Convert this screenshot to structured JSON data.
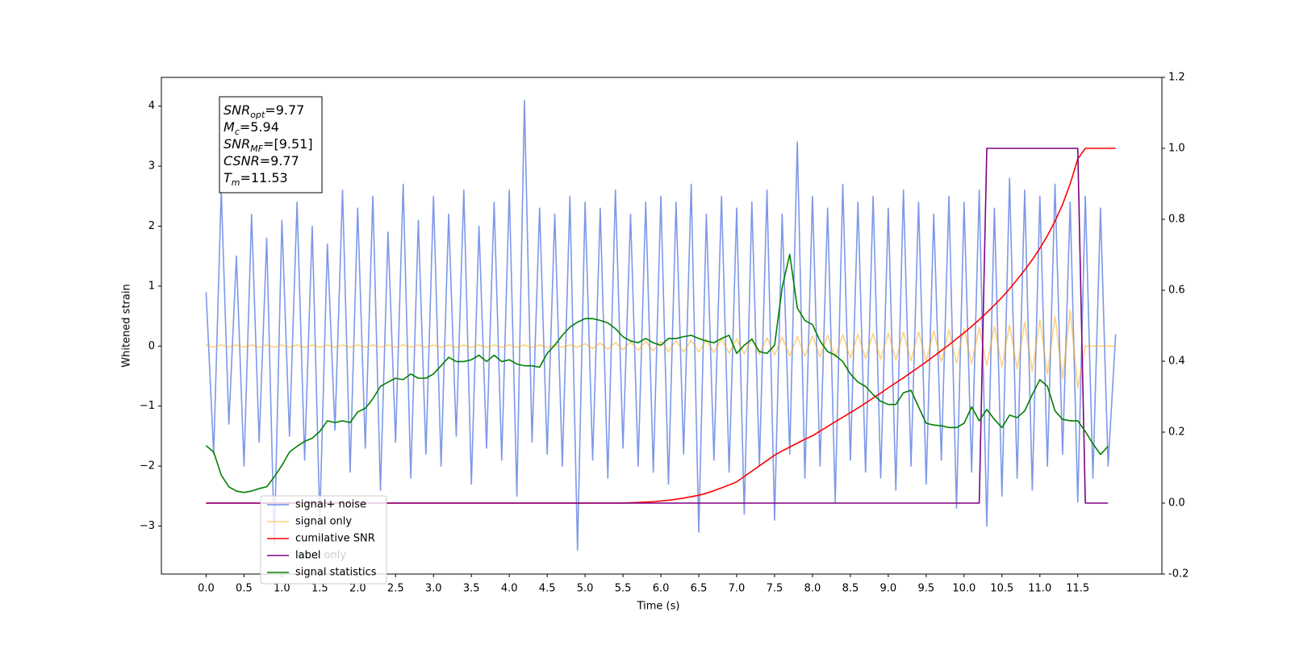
{
  "chart_data": {
    "type": "line",
    "xlabel": "Time (s)",
    "ylabel": "Whitened strain",
    "xlim": [
      -0.59,
      12.61
    ],
    "ylim": [
      -3.8,
      4.48
    ],
    "y2lim": [
      -0.2,
      1.2
    ],
    "xticks": [
      {
        "value": 0,
        "label": "0.0"
      },
      0.5,
      {
        "value": 1,
        "label": "1.0"
      },
      1.5,
      {
        "value": 2,
        "label": "2.0"
      },
      2.5,
      {
        "value": 3,
        "label": "3.0"
      },
      3.5,
      {
        "value": 4,
        "label": "4.0"
      },
      4.5,
      {
        "value": 5,
        "label": "5.0"
      },
      5.5,
      {
        "value": 6,
        "label": "6.0"
      },
      6.5,
      {
        "value": 7,
        "label": "7.0"
      },
      7.5,
      {
        "value": 8,
        "label": "8.0"
      },
      8.5,
      {
        "value": 9,
        "label": "9.0"
      },
      9.5,
      {
        "value": 10,
        "label": "10.0"
      },
      10.5,
      {
        "value": 11,
        "label": "11.0"
      },
      11.5
    ],
    "yticks": [
      {
        "value": -3,
        "label": "−3"
      },
      {
        "value": -2,
        "label": "−2"
      },
      {
        "value": -1,
        "label": "−1"
      },
      0,
      1,
      2,
      3,
      4
    ],
    "y2ticks": [
      -0.2,
      {
        "value": 0,
        "label": "0.0"
      },
      0.2,
      0.4,
      0.6,
      0.8,
      {
        "value": 1,
        "label": "1.0"
      },
      1.2
    ],
    "x": [
      0,
      0.1,
      0.2,
      0.3,
      0.4,
      0.5,
      0.6,
      0.7,
      0.8,
      0.9,
      1,
      1.1,
      1.2,
      1.3,
      1.4,
      1.5,
      1.6,
      1.7,
      1.8,
      1.9,
      2,
      2.1,
      2.2,
      2.3,
      2.4,
      2.5,
      2.6,
      2.7,
      2.8,
      2.9,
      3,
      3.1,
      3.2,
      3.3,
      3.4,
      3.5,
      3.6,
      3.7,
      3.8,
      3.9,
      4,
      4.1,
      4.2,
      4.3,
      4.4,
      4.5,
      4.6,
      4.7,
      4.8,
      4.9,
      5,
      5.1,
      5.2,
      5.3,
      5.4,
      5.5,
      5.6,
      5.7,
      5.8,
      5.9,
      6,
      6.1,
      6.2,
      6.3,
      6.4,
      6.5,
      6.6,
      6.7,
      6.8,
      6.9,
      7,
      7.1,
      7.2,
      7.3,
      7.4,
      7.5,
      7.6,
      7.7,
      7.8,
      7.9,
      8,
      8.1,
      8.2,
      8.3,
      8.4,
      8.5,
      8.6,
      8.7,
      8.8,
      8.9,
      9,
      9.1,
      9.2,
      9.3,
      9.4,
      9.5,
      9.6,
      9.7,
      9.8,
      9.9,
      10,
      10.1,
      10.2,
      10.3,
      10.4,
      10.5,
      10.6,
      10.7,
      10.8,
      10.9,
      11,
      11.1,
      11.2,
      11.3,
      11.4,
      11.5,
      11.6,
      11.7,
      11.8,
      11.9,
      12
    ],
    "series": [
      {
        "name": "signal+ noise",
        "color": "#6f8de6",
        "values": [
          0.9,
          -1.8,
          2.6,
          -1.3,
          1.5,
          -2.0,
          2.2,
          -1.6,
          1.8,
          -3.3,
          2.1,
          -1.5,
          2.4,
          -1.9,
          2.0,
          -2.9,
          1.7,
          -1.4,
          2.6,
          -2.1,
          2.3,
          -1.7,
          2.5,
          -2.4,
          1.9,
          -1.6,
          2.7,
          -2.2,
          2.1,
          -1.8,
          2.5,
          -2.0,
          2.2,
          -1.5,
          2.6,
          -2.3,
          2.0,
          -1.7,
          2.4,
          -1.9,
          2.6,
          -2.5,
          4.1,
          -1.6,
          2.3,
          -1.8,
          2.2,
          -2.0,
          2.5,
          -3.4,
          2.4,
          -1.9,
          2.3,
          -2.2,
          2.6,
          -1.7,
          2.2,
          -2.0,
          2.4,
          -2.1,
          2.5,
          -2.3,
          2.4,
          -1.8,
          2.7,
          -3.1,
          2.2,
          -1.9,
          2.5,
          -2.1,
          2.3,
          -2.8,
          2.4,
          -2.0,
          2.6,
          -2.9,
          2.2,
          -1.8,
          3.4,
          -2.2,
          2.5,
          -2.0,
          2.3,
          -2.6,
          2.7,
          -1.9,
          2.4,
          -2.1,
          2.5,
          -2.2,
          2.3,
          -2.4,
          2.6,
          -2.0,
          2.4,
          -2.3,
          2.2,
          -1.9,
          2.5,
          -2.7,
          2.4,
          -2.1,
          2.6,
          -3.0,
          2.3,
          -2.5,
          2.8,
          -2.2,
          2.6,
          -2.4,
          2.5,
          -2.0,
          2.7,
          -1.8,
          2.4,
          -2.6,
          2.5,
          -2.2,
          2.3,
          -2.0,
          0.2
        ]
      },
      {
        "name": "signal only",
        "color": "#ffa500",
        "values": [
          0.02,
          -0.02,
          0.02,
          -0.02,
          0.02,
          -0.02,
          0.02,
          -0.02,
          0.02,
          -0.02,
          0.02,
          -0.02,
          0.02,
          -0.02,
          0.02,
          -0.02,
          0.02,
          -0.02,
          0.02,
          -0.02,
          0.02,
          -0.02,
          0.02,
          -0.02,
          0.02,
          -0.02,
          0.02,
          -0.02,
          0.02,
          -0.02,
          0.02,
          -0.02,
          0.02,
          -0.02,
          0.02,
          -0.02,
          0.02,
          -0.02,
          0.02,
          -0.02,
          0.02,
          -0.02,
          0.02,
          -0.02,
          0.02,
          -0.02,
          0.02,
          -0.02,
          0.02,
          -0.02,
          0.04,
          -0.04,
          0.05,
          -0.05,
          0.06,
          -0.06,
          0.07,
          -0.07,
          0.08,
          -0.08,
          0.08,
          -0.09,
          0.09,
          -0.1,
          0.1,
          -0.1,
          0.11,
          -0.11,
          0.12,
          -0.12,
          0.12,
          -0.13,
          0.13,
          -0.14,
          0.14,
          -0.15,
          0.15,
          -0.16,
          0.16,
          -0.17,
          0.17,
          -0.18,
          0.18,
          -0.19,
          0.19,
          -0.2,
          0.2,
          -0.21,
          0.21,
          -0.22,
          0.22,
          -0.23,
          0.23,
          -0.24,
          0.24,
          -0.25,
          0.25,
          -0.26,
          0.27,
          -0.28,
          0.29,
          -0.3,
          0.31,
          -0.32,
          0.33,
          -0.35,
          0.36,
          -0.38,
          0.4,
          -0.42,
          0.44,
          -0.47,
          0.5,
          -0.55,
          0.6,
          -0.7,
          0,
          0,
          0,
          0,
          0
        ]
      },
      {
        "name": "cumilative SNR",
        "color": "#ff0000",
        "axis": "y2",
        "values": [
          0,
          0,
          0,
          0,
          0,
          0,
          0,
          0,
          0,
          0,
          0,
          0,
          0,
          0,
          0,
          0,
          0,
          0,
          0,
          0,
          0,
          0,
          0,
          0,
          0,
          0,
          0,
          0,
          0,
          0,
          0,
          0,
          0,
          0,
          0,
          0,
          0,
          0,
          0,
          0,
          0,
          0,
          0,
          0,
          0,
          0,
          0,
          0,
          0,
          0,
          0,
          0,
          0,
          0,
          0,
          0,
          0.001,
          0.002,
          0.003,
          0.004,
          0.006,
          0.008,
          0.011,
          0.014,
          0.018,
          0.022,
          0.028,
          0.035,
          0.043,
          0.051,
          0.06,
          0.075,
          0.09,
          0.105,
          0.12,
          0.135,
          0.147,
          0.158,
          0.169,
          0.18,
          0.19,
          0.203,
          0.216,
          0.229,
          0.242,
          0.255,
          0.268,
          0.282,
          0.296,
          0.31,
          0.325,
          0.339,
          0.353,
          0.368,
          0.383,
          0.398,
          0.414,
          0.43,
          0.446,
          0.463,
          0.48,
          0.498,
          0.517,
          0.537,
          0.558,
          0.58,
          0.604,
          0.63,
          0.657,
          0.686,
          0.718,
          0.754,
          0.795,
          0.842,
          0.9,
          0.97,
          1,
          1,
          1,
          1,
          1
        ]
      },
      {
        "name": "label",
        "color": "#800080",
        "axis": "y2",
        "values": [
          0,
          0,
          0,
          0,
          0,
          0,
          0,
          0,
          0,
          0,
          0,
          0,
          0,
          0,
          0,
          0,
          0,
          0,
          0,
          0,
          0,
          0,
          0,
          0,
          0,
          0,
          0,
          0,
          0,
          0,
          0,
          0,
          0,
          0,
          0,
          0,
          0,
          0,
          0,
          0,
          0,
          0,
          0,
          0,
          0,
          0,
          0,
          0,
          0,
          0,
          0,
          0,
          0,
          0,
          0,
          0,
          0,
          0,
          0,
          0,
          0,
          0,
          0,
          0,
          0,
          0,
          0,
          0,
          0,
          0,
          0,
          0,
          0,
          0,
          0,
          0,
          0,
          0,
          0,
          0,
          0,
          0,
          0,
          0,
          0,
          0,
          0,
          0,
          0,
          0,
          0,
          0,
          0,
          0,
          0,
          0,
          0,
          0,
          0,
          0,
          0,
          0,
          0,
          1,
          1,
          1,
          1,
          1,
          1,
          1,
          1,
          1,
          1,
          1,
          1,
          1,
          0,
          0,
          0,
          0,
          null
        ]
      },
      {
        "name": "signal statistics",
        "color": "#008000",
        "axis": "y2",
        "values": [
          0.162,
          0.144,
          0.079,
          0.046,
          0.034,
          0.03,
          0.034,
          0.041,
          0.046,
          0.074,
          0.106,
          0.144,
          0.16,
          0.174,
          0.183,
          0.202,
          0.232,
          0.227,
          0.232,
          0.227,
          0.257,
          0.267,
          0.294,
          0.329,
          0.341,
          0.352,
          0.348,
          0.364,
          0.352,
          0.352,
          0.364,
          0.387,
          0.411,
          0.399,
          0.399,
          0.404,
          0.417,
          0.399,
          0.417,
          0.399,
          0.404,
          0.392,
          0.387,
          0.387,
          0.383,
          0.422,
          0.445,
          0.473,
          0.496,
          0.51,
          0.52,
          0.52,
          0.515,
          0.508,
          0.492,
          0.469,
          0.457,
          0.452,
          0.464,
          0.452,
          0.445,
          0.464,
          0.464,
          0.469,
          0.473,
          0.464,
          0.457,
          0.452,
          0.464,
          0.473,
          0.422,
          0.445,
          0.462,
          0.427,
          0.422,
          0.445,
          0.608,
          0.701,
          0.55,
          0.515,
          0.503,
          0.457,
          0.427,
          0.417,
          0.399,
          0.364,
          0.341,
          0.329,
          0.306,
          0.287,
          0.278,
          0.278,
          0.311,
          0.318,
          0.271,
          0.225,
          0.22,
          0.218,
          0.213,
          0.213,
          0.225,
          0.271,
          0.232,
          0.264,
          0.236,
          0.213,
          0.248,
          0.241,
          0.26,
          0.306,
          0.348,
          0.329,
          0.26,
          0.236,
          0.232,
          0.232,
          0.202,
          0.167,
          0.137,
          0.16,
          null
        ]
      }
    ],
    "annotations": [
      "label only"
    ],
    "textbox": [
      {
        "symbol": "SNR",
        "subscript": "opt",
        "value": "=9.77"
      },
      {
        "symbol": "M",
        "subscript": "c",
        "value": "=5.94"
      },
      {
        "symbol": "SNR",
        "subscript": "MF",
        "value": "=[9.51]"
      },
      {
        "symbol": "CSNR",
        "subscript": null,
        "value": "=9.77"
      },
      {
        "symbol": "T",
        "subscript": "m",
        "value": "=11.53"
      }
    ]
  }
}
